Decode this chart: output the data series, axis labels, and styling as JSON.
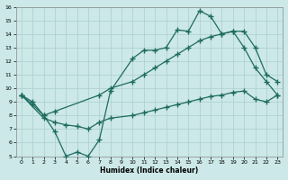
{
  "xlabel": "Humidex (Indice chaleur)",
  "xlim": [
    -0.5,
    23.5
  ],
  "ylim": [
    5,
    16
  ],
  "xticks": [
    0,
    1,
    2,
    3,
    4,
    5,
    6,
    7,
    8,
    9,
    10,
    11,
    12,
    13,
    14,
    15,
    16,
    17,
    18,
    19,
    20,
    21,
    22,
    23
  ],
  "yticks": [
    5,
    6,
    7,
    8,
    9,
    10,
    11,
    12,
    13,
    14,
    15,
    16
  ],
  "bg_color": "#cce8e8",
  "line_color": "#1e6b5e",
  "grid_color": "#aacfcf",
  "line1_x": [
    0,
    1,
    2,
    3,
    7,
    8,
    10,
    11,
    12,
    13,
    14,
    15,
    16,
    17,
    18,
    19,
    20,
    21,
    22,
    23
  ],
  "line1_y": [
    9.5,
    9.0,
    8.0,
    8.3,
    9.5,
    10.0,
    10.5,
    11.0,
    11.5,
    12.0,
    12.5,
    13.0,
    13.5,
    13.8,
    14.0,
    14.2,
    13.0,
    11.5,
    10.5,
    9.5
  ],
  "line2_x": [
    0,
    1,
    2,
    3,
    4,
    5,
    6,
    7,
    8,
    10,
    11,
    12,
    13,
    14,
    15,
    16,
    17,
    18,
    19,
    20,
    21,
    22,
    23
  ],
  "line2_y": [
    9.5,
    8.8,
    8.0,
    6.8,
    5.0,
    5.3,
    5.0,
    6.2,
    9.8,
    12.2,
    12.8,
    12.8,
    13.0,
    14.3,
    14.2,
    15.7,
    15.3,
    14.0,
    14.2,
    14.2,
    13.0,
    11.0,
    10.5
  ],
  "line3_x": [
    0,
    2,
    3,
    4,
    5,
    6,
    7,
    8,
    10,
    11,
    12,
    13,
    14,
    15,
    16,
    17,
    18,
    19,
    20,
    21,
    22,
    23
  ],
  "line3_y": [
    9.5,
    7.8,
    7.5,
    7.3,
    7.2,
    7.0,
    7.5,
    7.8,
    8.0,
    8.2,
    8.4,
    8.6,
    8.8,
    9.0,
    9.2,
    9.4,
    9.5,
    9.7,
    9.8,
    9.2,
    9.0,
    9.5
  ]
}
